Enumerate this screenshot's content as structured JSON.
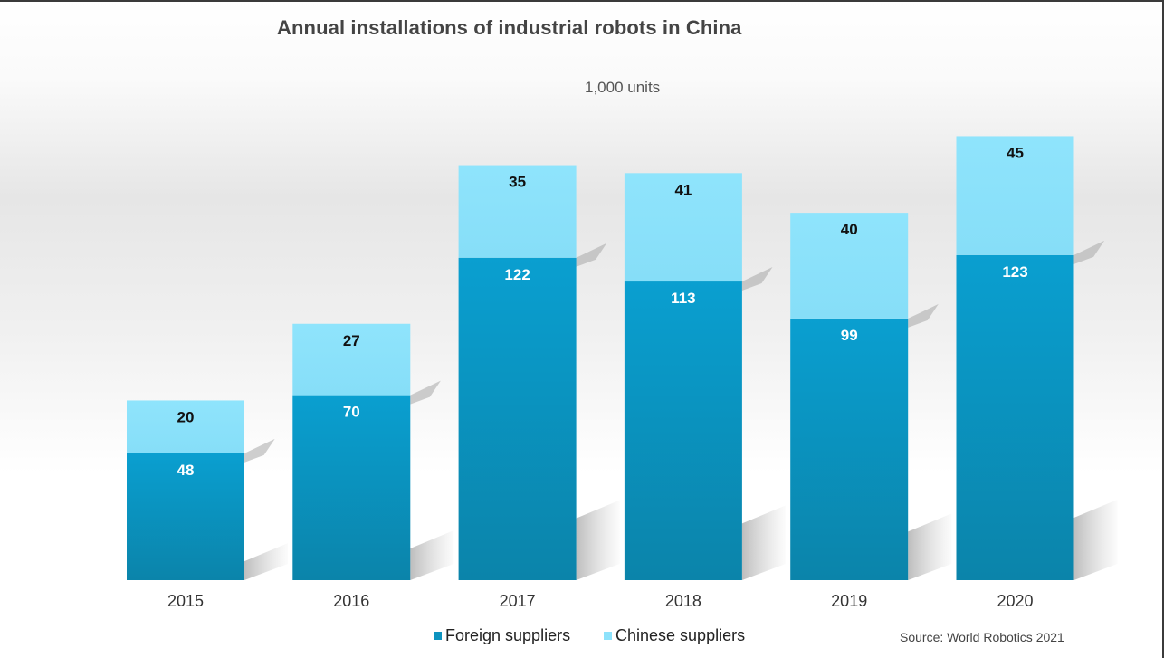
{
  "chart_data": {
    "type": "bar",
    "stacked": true,
    "title": "Annual installations of industrial robots in China",
    "subtitle": "1,000 units",
    "categories": [
      "2015",
      "2016",
      "2017",
      "2018",
      "2019",
      "2020"
    ],
    "series": [
      {
        "name": "Foreign suppliers",
        "values": [
          48,
          70,
          122,
          113,
          99,
          123
        ],
        "color": "#0d93bf"
      },
      {
        "name": "Chinese suppliers",
        "values": [
          20,
          27,
          35,
          41,
          40,
          45
        ],
        "color": "#8de2fb"
      }
    ],
    "ylim": [
      0,
      170
    ],
    "grid": false,
    "legend_position": "bottom",
    "source": "Source: World Robotics 2021"
  }
}
